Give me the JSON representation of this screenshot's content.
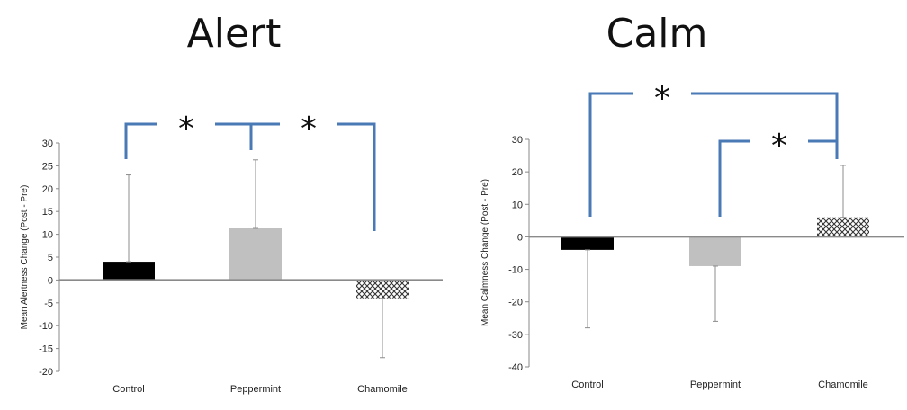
{
  "chart_data": [
    {
      "type": "bar",
      "title": "Alert",
      "ylabel": "Mean Alertness Change (Post - Pre)",
      "xlabel": "",
      "categories": [
        "Control",
        "Peppermint",
        "Chamomile"
      ],
      "values": [
        4,
        11.3,
        -4
      ],
      "error_upper": [
        23,
        26.3,
        -4
      ],
      "error_lower": [
        4,
        11.3,
        -17
      ],
      "ylim": [
        -20,
        30
      ],
      "yticks": [
        "30",
        "25",
        "20",
        "15",
        "10",
        "5",
        "0",
        "-5",
        "-10",
        "-15",
        "-20"
      ],
      "bar_colors": [
        "#000000",
        "#c0c0c0",
        "crosshatch"
      ],
      "significance": [
        {
          "from": "Control",
          "to": "Peppermint",
          "label": "*"
        },
        {
          "from": "Peppermint",
          "to": "Chamomile",
          "label": "*"
        }
      ],
      "annotation_color": "#4a7ab5"
    },
    {
      "type": "bar",
      "title": "Calm",
      "ylabel": "Mean Calmness Change (Post - Pre)",
      "xlabel": "",
      "categories": [
        "Control",
        "Peppermint",
        "Chamomile"
      ],
      "values": [
        -4,
        -9,
        6
      ],
      "error_upper": [
        -4,
        -9,
        22
      ],
      "error_lower": [
        -28,
        -26,
        6
      ],
      "ylim": [
        -40,
        30
      ],
      "yticks": [
        "30",
        "20",
        "10",
        "0",
        "-10",
        "-20",
        "-30",
        "-40"
      ],
      "bar_colors": [
        "#000000",
        "#c0c0c0",
        "crosshatch"
      ],
      "significance": [
        {
          "from": "Control",
          "to": "Chamomile",
          "label": "*"
        },
        {
          "from": "Peppermint",
          "to": "Chamomile",
          "label": "*"
        }
      ],
      "annotation_color": "#4a7ab5"
    }
  ]
}
